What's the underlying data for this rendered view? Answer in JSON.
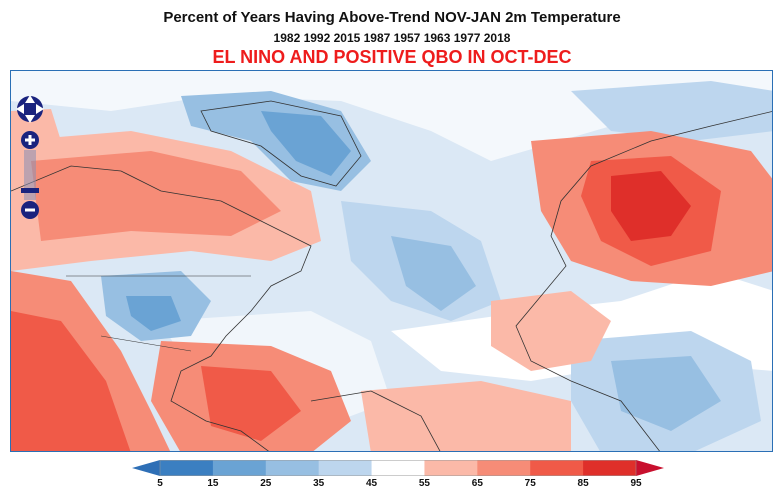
{
  "header": {
    "title": "Percent of Years Having Above-Trend NOV-JAN 2m Temperature",
    "years": "1982 1992 2015 1987 1957 1963 1977 2018",
    "condition": "EL NINO AND POSITIVE QBO IN OCT-DEC",
    "condition_color": "#ee1c1c"
  },
  "map": {
    "region": "North America, North Atlantic, Europe and Africa",
    "controls": {
      "pan": "pan-arrows-icon",
      "zoom_in": "+",
      "zoom_out": "−"
    }
  },
  "legend": {
    "ticks": [
      "5",
      "15",
      "25",
      "35",
      "45",
      "55",
      "65",
      "75",
      "85",
      "95"
    ],
    "colors": [
      "#3b7fc1",
      "#6aa3d4",
      "#97bfe2",
      "#bdd6ee",
      "#ffffff",
      "#fbb9a8",
      "#f68c77",
      "#f05a48",
      "#df2f2a"
    ],
    "low_arrow_color": "#2e6fb6",
    "high_arrow_color": "#c8102e"
  }
}
